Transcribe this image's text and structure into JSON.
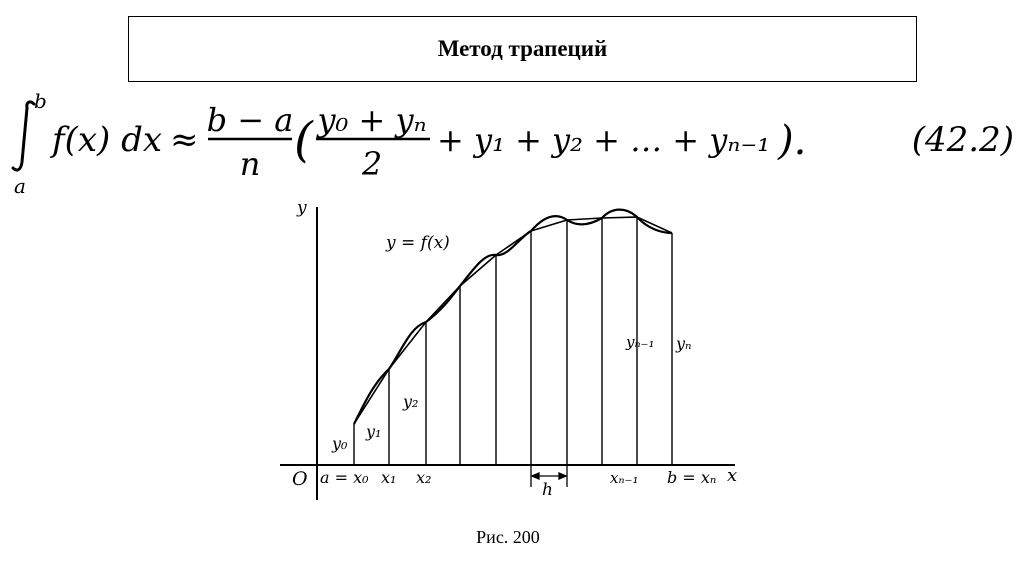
{
  "title": "Метод трапеций",
  "formula": {
    "upper_limit": "b",
    "lower_limit": "a",
    "integrand": "f(x) dx",
    "approx": "≈",
    "numerator": "b − a",
    "denominator": "n",
    "inner_numerator": "y₀ + yₙ",
    "inner_denominator": "2",
    "tail": "+ y₁ + y₂ + … + yₙ₋₁",
    "end": ").",
    "number": "(42.2)"
  },
  "figure": {
    "axis_y": "y",
    "axis_x": "x",
    "origin": "O",
    "curve_label": "y = f(x)",
    "labels": {
      "a_x0": "a = x₀",
      "x1": "x₁",
      "x2": "x₂",
      "xn1": "xₙ₋₁",
      "b_xn": "b = xₙ",
      "h": "h",
      "y0": "y₀",
      "y1": "y₁",
      "y2": "y₂",
      "yn1": "yₙ₋₁",
      "yn": "yₙ"
    }
  },
  "caption": "Рис. 200"
}
